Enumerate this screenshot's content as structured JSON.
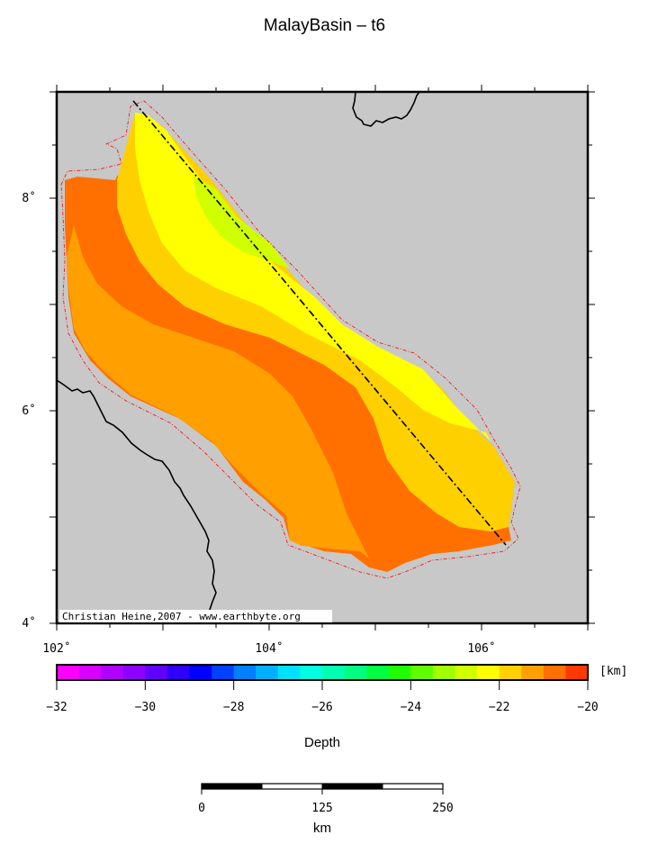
{
  "title": "MalayBasin – t6",
  "credit": "Christian Heine,2007 - www.earthbyte.org",
  "map": {
    "lon_range": [
      102,
      107
    ],
    "lat_range": [
      4,
      9
    ],
    "lon_labels": [
      {
        "value": 102,
        "text": "102˚"
      },
      {
        "value": 104,
        "text": "104˚"
      },
      {
        "value": 106,
        "text": "106˚"
      }
    ],
    "lat_labels": [
      {
        "value": 4,
        "text": "4˚"
      },
      {
        "value": 6,
        "text": "6˚"
      },
      {
        "value": 8,
        "text": "8˚"
      }
    ],
    "colors": {
      "land": "#c8c8c8",
      "boundary": "#ff0000",
      "profile_line": "#000000",
      "coastline": "#000000"
    }
  },
  "colorbar": {
    "label": "Depth",
    "unit": "[km]",
    "min": -32,
    "max": -20,
    "tick_labels": [
      "−32",
      "−30",
      "−28",
      "−26",
      "−24",
      "−22",
      "−20"
    ],
    "colors": [
      "#ff00ff",
      "#d800ff",
      "#b000ff",
      "#8c00ff",
      "#6000ff",
      "#3000ff",
      "#0000ff",
      "#0040ff",
      "#0080ff",
      "#00b0ff",
      "#00e0ff",
      "#00ffe0",
      "#00ffb0",
      "#00ff80",
      "#00ff40",
      "#20ff00",
      "#60ff00",
      "#a0ff00",
      "#d0ff00",
      "#ffff00",
      "#ffd000",
      "#ffa000",
      "#ff7000",
      "#ff3800"
    ]
  },
  "depth_zones": [
    {
      "name": "-21 to -20 km",
      "color": "#ff7000"
    },
    {
      "name": "-21.5 to -21 km",
      "color": "#ffa000"
    },
    {
      "name": "-22 to -21.5 km",
      "color": "#ffd000"
    },
    {
      "name": "-22.5 to -22 km",
      "color": "#ffff00"
    },
    {
      "name": "-23 to -22.5 km",
      "color": "#d0ff00"
    }
  ],
  "scale_bar": {
    "unit": "km",
    "labels": [
      "0",
      "125",
      "250"
    ]
  }
}
